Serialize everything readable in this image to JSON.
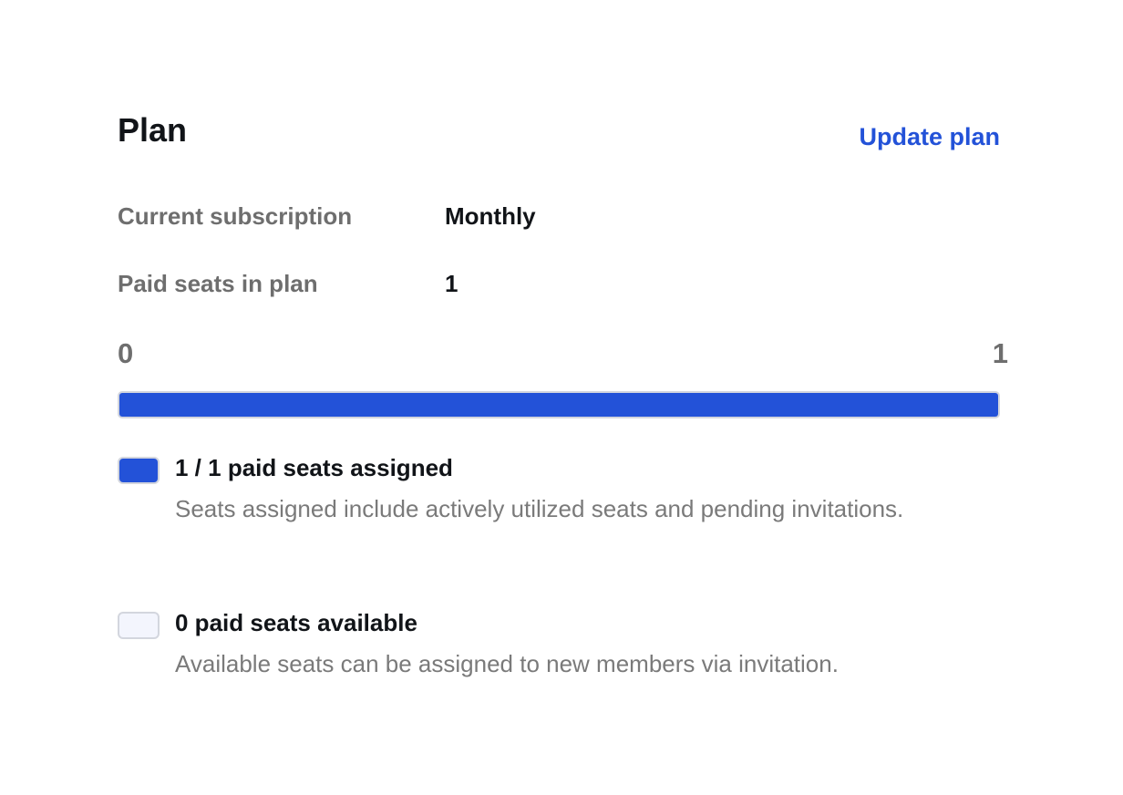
{
  "plan": {
    "title": "Plan",
    "update_label": "Update plan",
    "rows": [
      {
        "label": "Current subscription",
        "value": "Monthly"
      },
      {
        "label": "Paid seats in plan",
        "value": "1"
      }
    ],
    "scale": {
      "min": "0",
      "max": "1"
    },
    "progress_fraction": 1.0,
    "colors": {
      "accent": "#2352d8",
      "available": "#f3f5fd"
    },
    "legend": [
      {
        "title": "1 / 1 paid seats assigned",
        "description": "Seats assigned include actively utilized seats and pending invitations."
      },
      {
        "title": "0 paid seats available",
        "description": "Available seats can be assigned to new members via invitation."
      }
    ]
  }
}
